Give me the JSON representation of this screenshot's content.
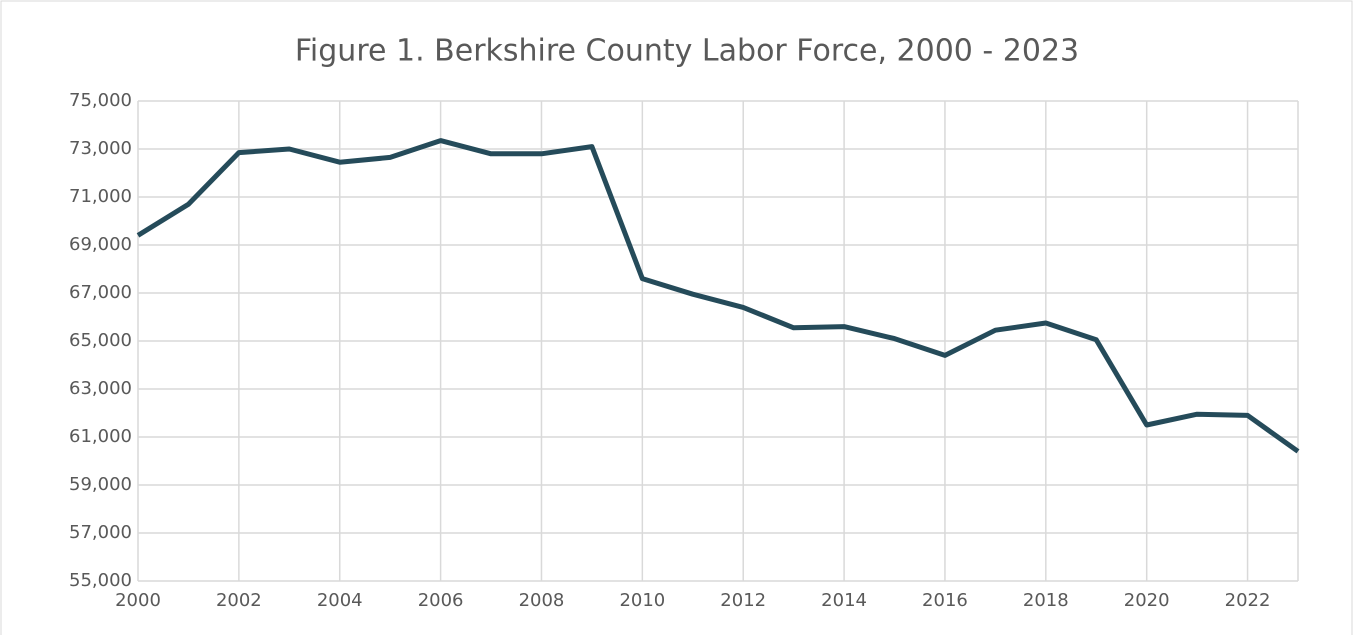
{
  "chart_data": {
    "type": "line",
    "title": "Figure 1. Berkshire County Labor Force, 2000 - 2023",
    "x": [
      2000,
      2001,
      2002,
      2003,
      2004,
      2005,
      2006,
      2007,
      2008,
      2009,
      2010,
      2011,
      2012,
      2013,
      2014,
      2015,
      2016,
      2017,
      2018,
      2019,
      2020,
      2021,
      2022,
      2023
    ],
    "series": [
      {
        "name": "Labor Force",
        "color": "#254b5a",
        "values": [
          69400,
          70700,
          72850,
          73000,
          72450,
          72650,
          73350,
          72800,
          72800,
          73100,
          67600,
          66950,
          66400,
          65550,
          65600,
          65100,
          64400,
          65450,
          65750,
          65050,
          61500,
          61950,
          61900,
          60400
        ]
      }
    ],
    "xlim": [
      2000,
      2023
    ],
    "xticks": [
      2000,
      2002,
      2004,
      2006,
      2008,
      2010,
      2012,
      2014,
      2016,
      2018,
      2020,
      2022
    ],
    "ylim": [
      55000,
      75000
    ],
    "yticks": [
      {
        "value": 55000,
        "label": "55,000"
      },
      {
        "value": 57000,
        "label": "57,000"
      },
      {
        "value": 59000,
        "label": "59,000"
      },
      {
        "value": 61000,
        "label": "61,000"
      },
      {
        "value": 63000,
        "label": "63,000"
      },
      {
        "value": 65000,
        "label": "65,000"
      },
      {
        "value": 67000,
        "label": "67,000"
      },
      {
        "value": 69000,
        "label": "69,000"
      },
      {
        "value": 71000,
        "label": "71,000"
      },
      {
        "value": 73000,
        "label": "73,000"
      },
      {
        "value": 75000,
        "label": "75,000"
      }
    ],
    "grid": true
  }
}
